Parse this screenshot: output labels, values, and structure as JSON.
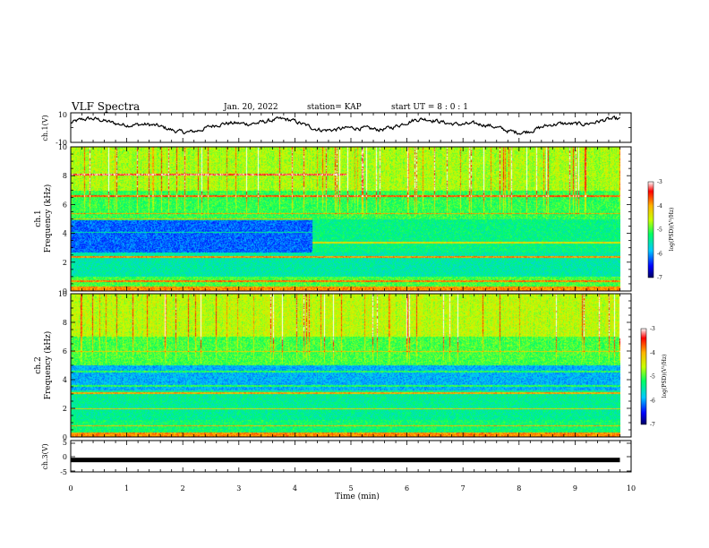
{
  "header": {
    "title": "VLF Spectra",
    "date": "Jan. 20, 2022",
    "station": "station= KAP",
    "start_ut": "start UT =  8 : 0 : 1"
  },
  "chart_data": [
    {
      "id": "ch1-waveform",
      "type": "line",
      "ylabel": "ch.1(V)",
      "xlim": [
        0,
        10
      ],
      "ylim": [
        -10,
        10
      ],
      "y_ticks": [
        "10",
        "-10"
      ],
      "description_series": "ch.1 voltage, oscillating mostly between about -5 and +7 V over the 10-minute record"
    },
    {
      "id": "ch1-spectrogram",
      "type": "heatmap",
      "ylabel_top": "ch.1",
      "ylabel": "Frequency (kHz)",
      "xlim": [
        0,
        10
      ],
      "ylim": [
        0,
        10
      ],
      "y_ticks": [
        "0",
        "2",
        "4",
        "6",
        "8",
        "10"
      ],
      "data_end_min": 9.8,
      "colorbar": {
        "label": "log(PSD)(V²/Hz)",
        "range": [
          -7,
          -3
        ],
        "ticks": [
          "-3",
          "-4",
          "-5",
          "-6",
          "-7"
        ]
      }
    },
    {
      "id": "ch2-spectrogram",
      "type": "heatmap",
      "ylabel_top": "ch.2",
      "ylabel": "Frequency (kHz)",
      "xlim": [
        0,
        10
      ],
      "ylim": [
        0,
        10
      ],
      "y_ticks": [
        "0",
        "2",
        "4",
        "6",
        "8",
        "10"
      ],
      "data_end_min": 9.8,
      "colorbar": {
        "label": "log(PSD)(V²/Hz)",
        "range": [
          -7,
          -3
        ],
        "ticks": [
          "-3",
          "-4",
          "-5",
          "-6",
          "-7"
        ]
      }
    },
    {
      "id": "ch3-waveform",
      "type": "line",
      "ylabel": "ch.3(V)",
      "xlim": [
        0,
        10
      ],
      "ylim": [
        -5,
        5
      ],
      "y_ticks": [
        "5",
        "0",
        "-5"
      ],
      "constant_value": -1.2,
      "xlabel": "Time (min)",
      "x_ticks": [
        "0",
        "1",
        "2",
        "3",
        "4",
        "5",
        "6",
        "7",
        "8",
        "9",
        "10"
      ]
    }
  ]
}
